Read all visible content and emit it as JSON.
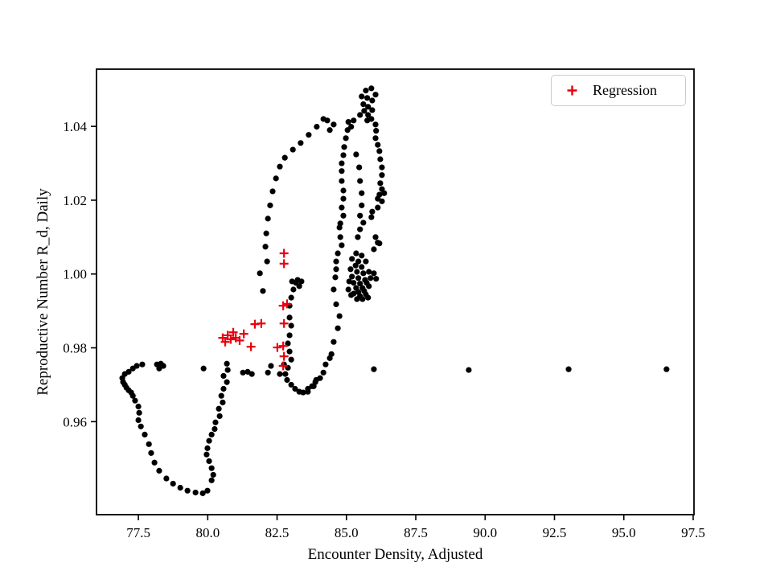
{
  "figure": {
    "background": "#ffffff"
  },
  "chart_data": {
    "type": "scatter",
    "title": "",
    "xlabel": "Encounter Density, Adjusted",
    "ylabel": "Reproductive Number R_d, Daily",
    "xlim": [
      75.99,
      97.53
    ],
    "ylim": [
      0.9348,
      1.0555
    ],
    "grid": false,
    "xticks": [
      77.5,
      80.0,
      82.5,
      85.0,
      87.5,
      90.0,
      92.5,
      95.0,
      97.5
    ],
    "xtick_labels": [
      "77.5",
      "80.0",
      "82.5",
      "85.0",
      "87.5",
      "90.0",
      "92.5",
      "95.0",
      "97.5"
    ],
    "yticks": [
      0.96,
      0.98,
      1.0,
      1.02,
      1.04
    ],
    "ytick_labels": [
      "0.96",
      "0.98",
      "1.00",
      "1.02",
      "1.04"
    ],
    "legend": {
      "position": "upper right",
      "entries": [
        {
          "label": "Regression",
          "marker": "plus",
          "color": "#e8000b"
        }
      ]
    },
    "series": [
      {
        "name": "trajectory",
        "marker": "circle",
        "color": "#000000",
        "points": [
          [
            78.17,
            0.9755
          ],
          [
            78.31,
            0.9757
          ],
          [
            78.4,
            0.9751
          ],
          [
            78.25,
            0.9744
          ],
          [
            77.64,
            0.9755
          ],
          [
            77.44,
            0.9751
          ],
          [
            77.3,
            0.9744
          ],
          [
            77.15,
            0.9735
          ],
          [
            77.01,
            0.9729
          ],
          [
            76.92,
            0.9718
          ],
          [
            76.95,
            0.9707
          ],
          [
            77.01,
            0.97
          ],
          [
            77.07,
            0.9692
          ],
          [
            77.15,
            0.9685
          ],
          [
            77.24,
            0.9679
          ],
          [
            77.3,
            0.967
          ],
          [
            77.38,
            0.9657
          ],
          [
            77.5,
            0.9641
          ],
          [
            77.53,
            0.9624
          ],
          [
            77.5,
            0.9604
          ],
          [
            77.59,
            0.9587
          ],
          [
            77.73,
            0.9565
          ],
          [
            77.88,
            0.9539
          ],
          [
            77.96,
            0.9515
          ],
          [
            78.08,
            0.9489
          ],
          [
            78.25,
            0.9467
          ],
          [
            78.51,
            0.9446
          ],
          [
            78.75,
            0.9432
          ],
          [
            79.01,
            0.9421
          ],
          [
            79.27,
            0.9413
          ],
          [
            79.56,
            0.9408
          ],
          [
            79.82,
            0.9406
          ],
          [
            79.99,
            0.9413
          ],
          [
            80.14,
            0.9441
          ],
          [
            80.2,
            0.9456
          ],
          [
            80.14,
            0.9474
          ],
          [
            80.05,
            0.9493
          ],
          [
            79.96,
            0.9511
          ],
          [
            79.99,
            0.9528
          ],
          [
            80.05,
            0.9548
          ],
          [
            80.14,
            0.9565
          ],
          [
            80.25,
            0.958
          ],
          [
            80.28,
            0.9598
          ],
          [
            80.43,
            0.9615
          ],
          [
            80.4,
            0.9635
          ],
          [
            80.54,
            0.9652
          ],
          [
            80.49,
            0.967
          ],
          [
            80.57,
            0.9689
          ],
          [
            80.69,
            0.9707
          ],
          [
            80.57,
            0.9724
          ],
          [
            80.72,
            0.974
          ],
          [
            80.69,
            0.9757
          ],
          [
            79.85,
            0.9744
          ],
          [
            81.27,
            0.9733
          ],
          [
            81.44,
            0.9735
          ],
          [
            81.59,
            0.9729
          ],
          [
            82.17,
            0.9733
          ],
          [
            82.28,
            0.9751
          ],
          [
            82.6,
            0.9729
          ],
          [
            82.89,
            0.9746
          ],
          [
            81.99,
            0.9954
          ],
          [
            81.88,
            1.0002
          ],
          [
            82.14,
            1.0034
          ],
          [
            82.08,
            1.0074
          ],
          [
            82.11,
            1.011
          ],
          [
            82.17,
            1.015
          ],
          [
            82.25,
            1.0186
          ],
          [
            82.34,
            1.0224
          ],
          [
            82.46,
            1.0259
          ],
          [
            82.6,
            1.0291
          ],
          [
            82.78,
            1.0315
          ],
          [
            83.07,
            1.0337
          ],
          [
            83.35,
            1.0355
          ],
          [
            83.64,
            1.0377
          ],
          [
            83.93,
            1.0399
          ],
          [
            84.17,
            1.042
          ],
          [
            84.31,
            1.0416
          ],
          [
            84.54,
            1.0405
          ],
          [
            84.4,
            1.039
          ],
          [
            83.04,
            0.998
          ],
          [
            83.24,
            0.9984
          ],
          [
            83.38,
            0.998
          ],
          [
            83.3,
            0.9967
          ],
          [
            83.18,
            0.9976
          ],
          [
            83.09,
            0.9958
          ],
          [
            83.01,
            0.9936
          ],
          [
            82.95,
            0.9914
          ],
          [
            82.95,
            0.9882
          ],
          [
            83.01,
            0.986
          ],
          [
            82.95,
            0.9834
          ],
          [
            82.89,
            0.9812
          ],
          [
            82.95,
            0.979
          ],
          [
            83.01,
            0.9768
          ],
          [
            85.49,
            1.0431
          ],
          [
            85.26,
            1.0416
          ],
          [
            85.17,
            1.0399
          ],
          [
            85.07,
            1.0412
          ],
          [
            85.04,
            1.039
          ],
          [
            84.98,
            1.0368
          ],
          [
            84.92,
            1.0344
          ],
          [
            84.89,
            1.0322
          ],
          [
            84.83,
            1.03
          ],
          [
            84.83,
            1.0279
          ],
          [
            84.83,
            1.0252
          ],
          [
            84.89,
            1.0226
          ],
          [
            84.89,
            1.0204
          ],
          [
            84.83,
            1.018
          ],
          [
            84.89,
            1.0158
          ],
          [
            84.78,
            1.0137
          ],
          [
            84.75,
            1.0126
          ],
          [
            84.78,
            1.01
          ],
          [
            84.83,
            1.0078
          ],
          [
            84.69,
            1.0056
          ],
          [
            84.63,
            1.0034
          ],
          [
            84.63,
            1.0013
          ],
          [
            84.6,
            0.9991
          ],
          [
            84.54,
            0.9958
          ],
          [
            84.63,
            0.9918
          ],
          [
            84.75,
            0.9886
          ],
          [
            84.69,
            0.9853
          ],
          [
            84.54,
            0.9816
          ],
          [
            84.46,
            0.9783
          ],
          [
            84.4,
            0.9772
          ],
          [
            84.25,
            0.9755
          ],
          [
            84.17,
            0.9733
          ],
          [
            84.05,
            0.9718
          ],
          [
            83.91,
            0.9713
          ],
          [
            83.88,
            0.9707
          ],
          [
            83.82,
            0.9696
          ],
          [
            83.76,
            0.9696
          ],
          [
            83.61,
            0.9689
          ],
          [
            83.61,
            0.9681
          ],
          [
            83.44,
            0.9679
          ],
          [
            83.3,
            0.9681
          ],
          [
            83.15,
            0.9689
          ],
          [
            83.01,
            0.97
          ],
          [
            82.86,
            0.9713
          ],
          [
            82.8,
            0.9729
          ],
          [
            82.75,
            0.9755
          ],
          [
            85.35,
            1.0324
          ],
          [
            85.46,
            1.0289
          ],
          [
            85.49,
            1.0252
          ],
          [
            85.55,
            1.0219
          ],
          [
            85.55,
            1.0186
          ],
          [
            85.49,
            1.0158
          ],
          [
            85.61,
            1.0139
          ],
          [
            85.49,
            1.0121
          ],
          [
            85.41,
            1.01
          ],
          [
            85.9,
            1.042
          ],
          [
            86.05,
            1.0405
          ],
          [
            86.07,
            1.0388
          ],
          [
            86.05,
            1.0368
          ],
          [
            86.13,
            1.035
          ],
          [
            86.19,
            1.0333
          ],
          [
            86.22,
            1.0311
          ],
          [
            86.28,
            1.0289
          ],
          [
            86.28,
            1.0268
          ],
          [
            86.22,
            1.0246
          ],
          [
            86.28,
            1.023
          ],
          [
            86.19,
            1.0215
          ],
          [
            86.13,
            1.0204
          ],
          [
            86.36,
            1.0219
          ],
          [
            86.28,
            1.0197
          ],
          [
            86.13,
            1.018
          ],
          [
            85.93,
            1.0169
          ],
          [
            85.9,
            1.0154
          ],
          [
            86.05,
            1.01
          ],
          [
            86.13,
            1.0085
          ],
          [
            86.19,
            1.0083
          ],
          [
            85.99,
            1.0067
          ],
          [
            85.35,
            1.0056
          ],
          [
            85.55,
            1.005
          ],
          [
            85.2,
            1.0041
          ],
          [
            85.43,
            1.0034
          ],
          [
            85.7,
            1.0034
          ],
          [
            85.33,
            1.0023
          ],
          [
            85.55,
            1.0019
          ],
          [
            85.15,
            1.0013
          ],
          [
            85.38,
            1.0006
          ],
          [
            85.61,
            1.0002
          ],
          [
            85.81,
            1.0006
          ],
          [
            85.2,
            0.9993
          ],
          [
            85.43,
            0.9989
          ],
          [
            85.67,
            0.9984
          ],
          [
            85.87,
            0.9989
          ],
          [
            85.1,
            0.998
          ],
          [
            85.26,
            0.9976
          ],
          [
            85.49,
            0.9974
          ],
          [
            85.73,
            0.9976
          ],
          [
            85.35,
            0.9962
          ],
          [
            85.58,
            0.9962
          ],
          [
            85.81,
            0.9967
          ],
          [
            85.43,
            0.9951
          ],
          [
            85.64,
            0.9954
          ],
          [
            85.26,
            0.9947
          ],
          [
            85.49,
            0.994
          ],
          [
            85.7,
            0.9945
          ],
          [
            85.38,
            0.9932
          ],
          [
            85.58,
            0.9932
          ],
          [
            85.78,
            0.9936
          ],
          [
            85.99,
            1.0002
          ],
          [
            86.07,
            0.9987
          ],
          [
            85.07,
            0.9958
          ],
          [
            85.17,
            0.9943
          ],
          [
            85.99,
            0.9742
          ],
          [
            89.41,
            0.974
          ],
          [
            93.01,
            0.9742
          ],
          [
            96.54,
            0.9742
          ],
          [
            85.7,
            1.0497
          ],
          [
            85.9,
            1.0503
          ],
          [
            86.05,
            1.0486
          ],
          [
            85.93,
            1.047
          ],
          [
            85.75,
            1.0477
          ],
          [
            85.55,
            1.0481
          ],
          [
            85.61,
            1.046
          ],
          [
            85.78,
            1.0453
          ],
          [
            85.93,
            1.0444
          ],
          [
            85.64,
            1.0442
          ],
          [
            85.78,
            1.0431
          ],
          [
            85.75,
            1.0416
          ]
        ]
      },
      {
        "name": "Regression",
        "marker": "plus",
        "color": "#e8000b",
        "points": [
          [
            82.75,
            1.0056
          ],
          [
            82.75,
            1.0028
          ],
          [
            82.72,
            0.9914
          ],
          [
            82.86,
            0.9919
          ],
          [
            82.75,
            0.9866
          ],
          [
            82.72,
            0.9805
          ],
          [
            82.51,
            0.9801
          ],
          [
            82.75,
            0.9777
          ],
          [
            82.72,
            0.9751
          ],
          [
            81.93,
            0.9866
          ],
          [
            81.7,
            0.9864
          ],
          [
            81.56,
            0.9803
          ],
          [
            81.3,
            0.9838
          ],
          [
            81.15,
            0.982
          ],
          [
            81.01,
            0.9827
          ],
          [
            80.92,
            0.9842
          ],
          [
            80.83,
            0.9823
          ],
          [
            80.72,
            0.9834
          ],
          [
            80.63,
            0.9816
          ],
          [
            80.54,
            0.9827
          ]
        ]
      }
    ]
  }
}
